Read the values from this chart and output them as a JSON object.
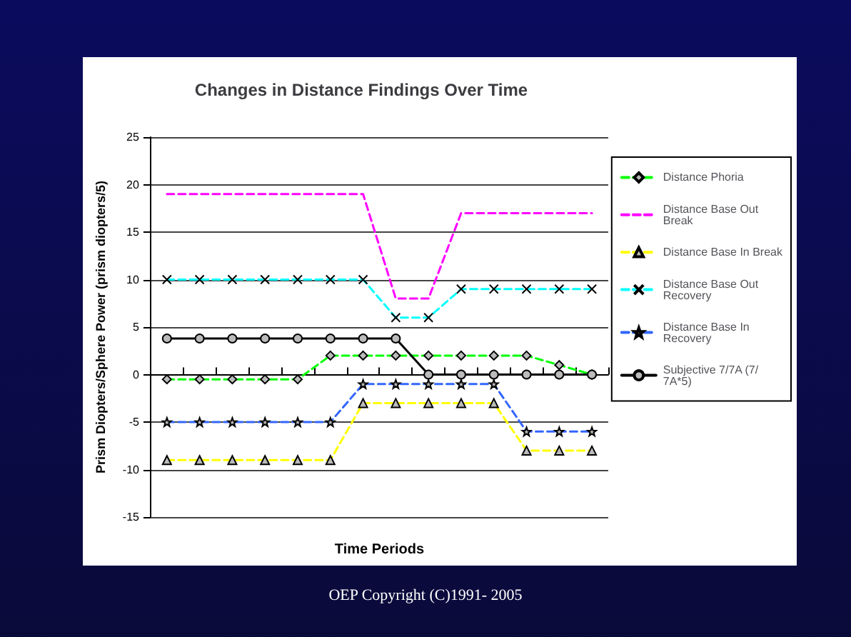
{
  "chart_data": {
    "type": "line",
    "title": "Changes in Distance Findings Over Time",
    "xlabel": "Time Periods",
    "ylabel": "Prism Diopters/Sphere Power (prism diopters/5)",
    "categories": [
      null,
      null,
      null,
      null,
      null,
      null,
      null,
      null,
      null,
      null,
      null,
      null,
      null,
      null
    ],
    "series": [
      {
        "name": "Distance Phoria",
        "color": "#00ff00",
        "marker": "diamond",
        "line_style": "dashed",
        "values": [
          -0.5,
          -0.5,
          -0.5,
          -0.5,
          -0.5,
          2,
          2,
          2,
          2,
          2,
          2,
          2,
          1,
          0
        ]
      },
      {
        "name": "Distance Base Out Break",
        "color": "#ff00ff",
        "marker": "none",
        "line_style": "dashed",
        "values": [
          19,
          19,
          19,
          19,
          19,
          19,
          19,
          8,
          8,
          17,
          17,
          17,
          17,
          17
        ]
      },
      {
        "name": "Distance Base In Break",
        "color": "#ffff00",
        "marker": "triangle",
        "line_style": "dashed",
        "values": [
          -9,
          -9,
          -9,
          -9,
          -9,
          -9,
          -3,
          -3,
          -3,
          -3,
          -3,
          -8,
          -8,
          -8
        ]
      },
      {
        "name": "Distance Base Out Recovery",
        "color": "#00ffff",
        "marker": "cross",
        "line_style": "dashed",
        "values": [
          10,
          10,
          10,
          10,
          10,
          10,
          10,
          6,
          6,
          9,
          9,
          9,
          9,
          9
        ]
      },
      {
        "name": "Distance Base In Recovery",
        "color": "#3366ff",
        "marker": "star",
        "line_style": "dashed",
        "values": [
          -5,
          -5,
          -5,
          -5,
          -5,
          -5,
          -1,
          -1,
          -1,
          -1,
          -1,
          -6,
          -6,
          -6
        ]
      },
      {
        "name": "Subjective 7/7A (7/7A*5)",
        "color": "#000000",
        "marker": "circle",
        "line_style": "solid",
        "values": [
          3.8,
          3.8,
          3.8,
          3.8,
          3.8,
          3.8,
          3.8,
          3.8,
          0,
          0,
          0,
          0,
          0,
          0
        ]
      }
    ],
    "ylim": [
      -15,
      25
    ],
    "yticks": [
      -15,
      -10,
      -5,
      0,
      5,
      10,
      15,
      20,
      25
    ],
    "grid": "y",
    "legend": "right",
    "annotations": [
      "OEP Copyright (C)1991- 2005"
    ]
  }
}
